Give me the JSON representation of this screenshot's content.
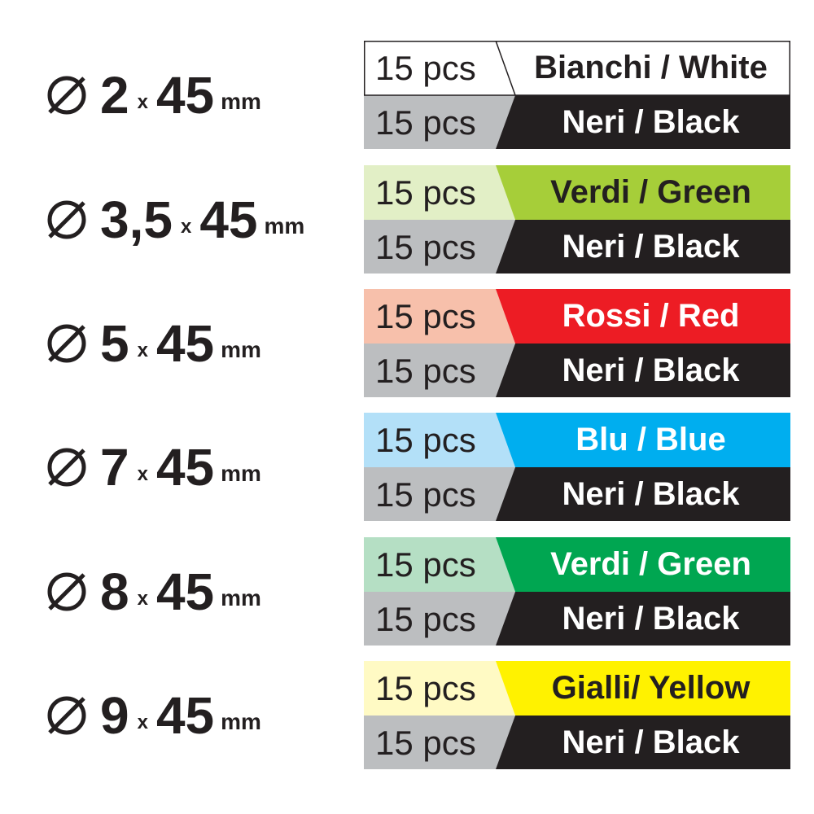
{
  "groups": [
    {
      "size": "2",
      "x": "x",
      "length": "45",
      "unit": "mm",
      "top": {
        "qty": "15 pcs",
        "label": "Bianchi / White",
        "color": "#ffffff",
        "light": "#ffffff",
        "text": "#231f20"
      },
      "bottom": {
        "qty": "15 pcs",
        "label": "Neri / Black"
      }
    },
    {
      "size": "3,5",
      "x": "x",
      "length": "45",
      "unit": "mm",
      "top": {
        "qty": "15 pcs",
        "label": "Verdi / Green",
        "color": "#a6ce39",
        "light": "#e2efc6",
        "text": "#231f20"
      },
      "bottom": {
        "qty": "15 pcs",
        "label": "Neri / Black"
      }
    },
    {
      "size": "5",
      "x": "x",
      "length": "45",
      "unit": "mm",
      "top": {
        "qty": "15 pcs",
        "label": "Rossi / Red",
        "color": "#ed1c24",
        "light": "#f7c0ab",
        "text": "#ffffff"
      },
      "bottom": {
        "qty": "15 pcs",
        "label": "Neri / Black"
      }
    },
    {
      "size": "7",
      "x": "x",
      "length": "45",
      "unit": "mm",
      "top": {
        "qty": "15 pcs",
        "label": "Blu / Blue",
        "color": "#00aeef",
        "light": "#b3e0f8",
        "text": "#ffffff"
      },
      "bottom": {
        "qty": "15 pcs",
        "label": "Neri / Black"
      }
    },
    {
      "size": "8",
      "x": "x",
      "length": "45",
      "unit": "mm",
      "top": {
        "qty": "15 pcs",
        "label": "Verdi / Green",
        "color": "#00a651",
        "light": "#b5dfc4",
        "text": "#ffffff"
      },
      "bottom": {
        "qty": "15 pcs",
        "label": "Neri / Black"
      }
    },
    {
      "size": "9",
      "x": "x",
      "length": "45",
      "unit": "mm",
      "top": {
        "qty": "15 pcs",
        "label": "Gialli/ Yellow",
        "color": "#fff200",
        "light": "#fffac4",
        "text": "#231f20"
      },
      "bottom": {
        "qty": "15 pcs",
        "label": "Neri / Black"
      }
    }
  ],
  "colors": {
    "black": "#231f20",
    "gray": "#bcbec0"
  },
  "icon": "diameter-icon"
}
